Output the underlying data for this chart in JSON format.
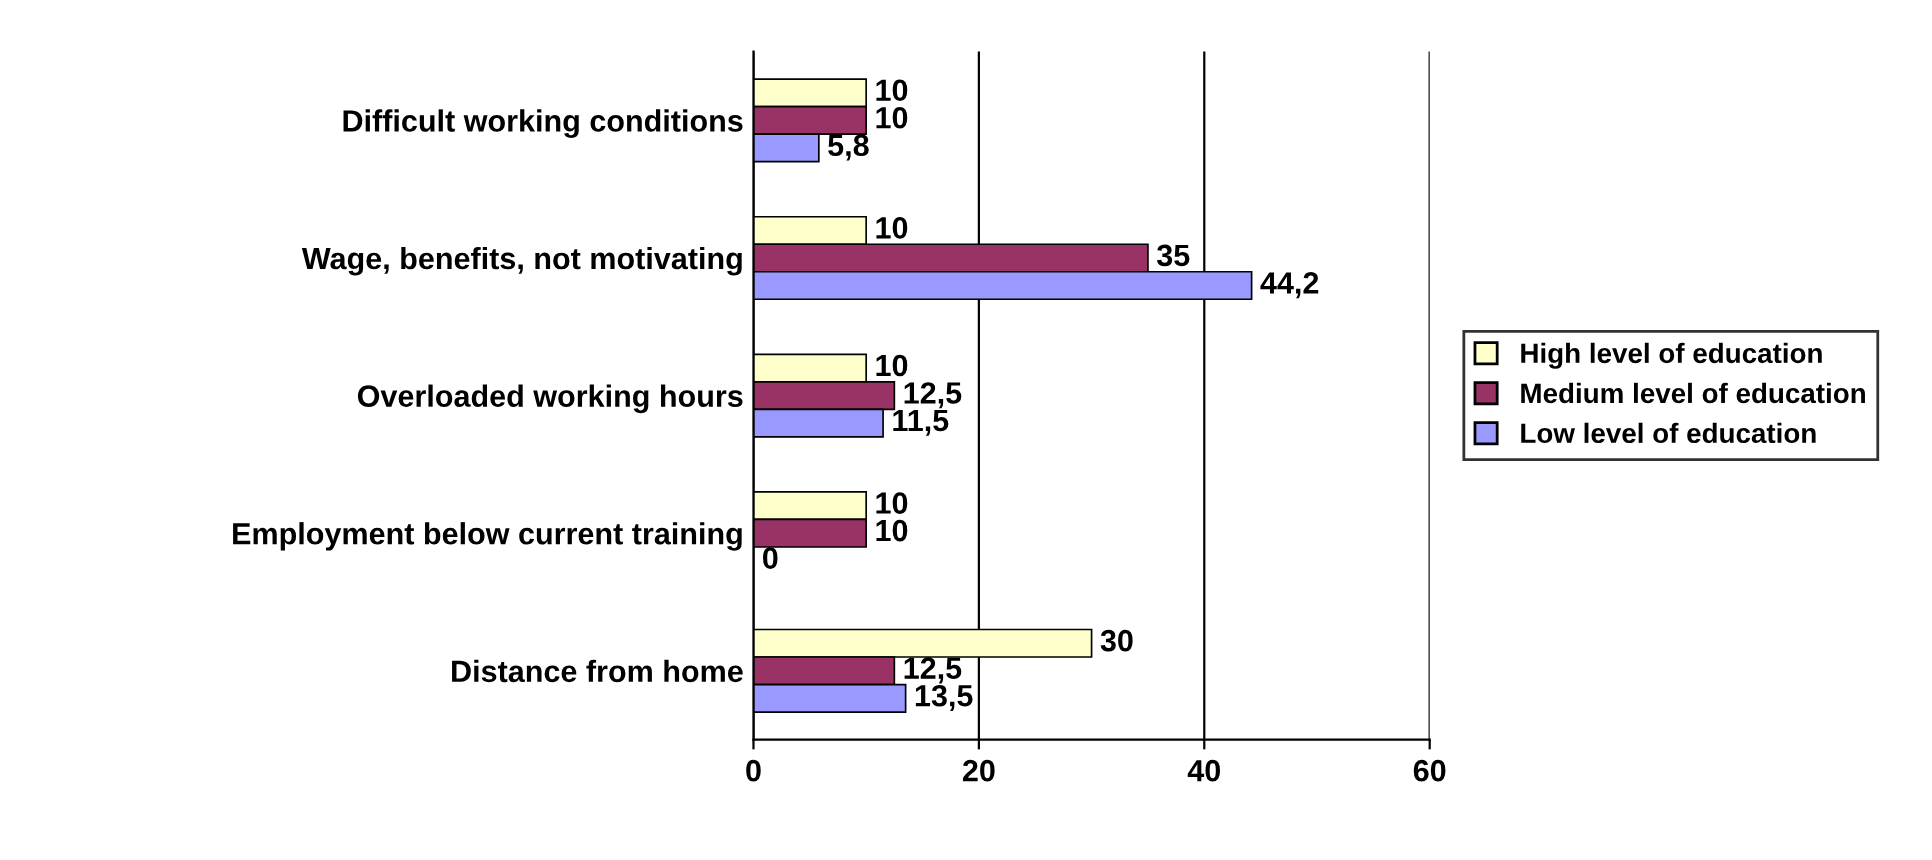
{
  "chart_data": {
    "type": "bar",
    "orientation": "horizontal",
    "categories": [
      "Difficult working conditions",
      "Wage, benefits, not motivating",
      "Overloaded working hours",
      "Employment below current training",
      "Distance from home"
    ],
    "series": [
      {
        "name": "High level of education",
        "color": "#ffffcc",
        "values": [
          10,
          10,
          10,
          10,
          30
        ],
        "value_labels": [
          "10",
          "10",
          "10",
          "10",
          "30"
        ]
      },
      {
        "name": "Medium level of education",
        "color": "#993366",
        "values": [
          10,
          35,
          12.5,
          10,
          12.5
        ],
        "value_labels": [
          "10",
          "35",
          "12,5",
          "10",
          "12,5"
        ]
      },
      {
        "name": "Low level of education",
        "color": "#9999ff",
        "values": [
          5.8,
          44.2,
          11.5,
          0,
          13.5
        ],
        "value_labels": [
          "5,8",
          "44,2",
          "11,5",
          "0",
          "13,5"
        ]
      }
    ],
    "xlim": [
      0,
      60
    ],
    "xticks": [
      0,
      20,
      40,
      60
    ],
    "grid": "x",
    "legend": "right"
  }
}
